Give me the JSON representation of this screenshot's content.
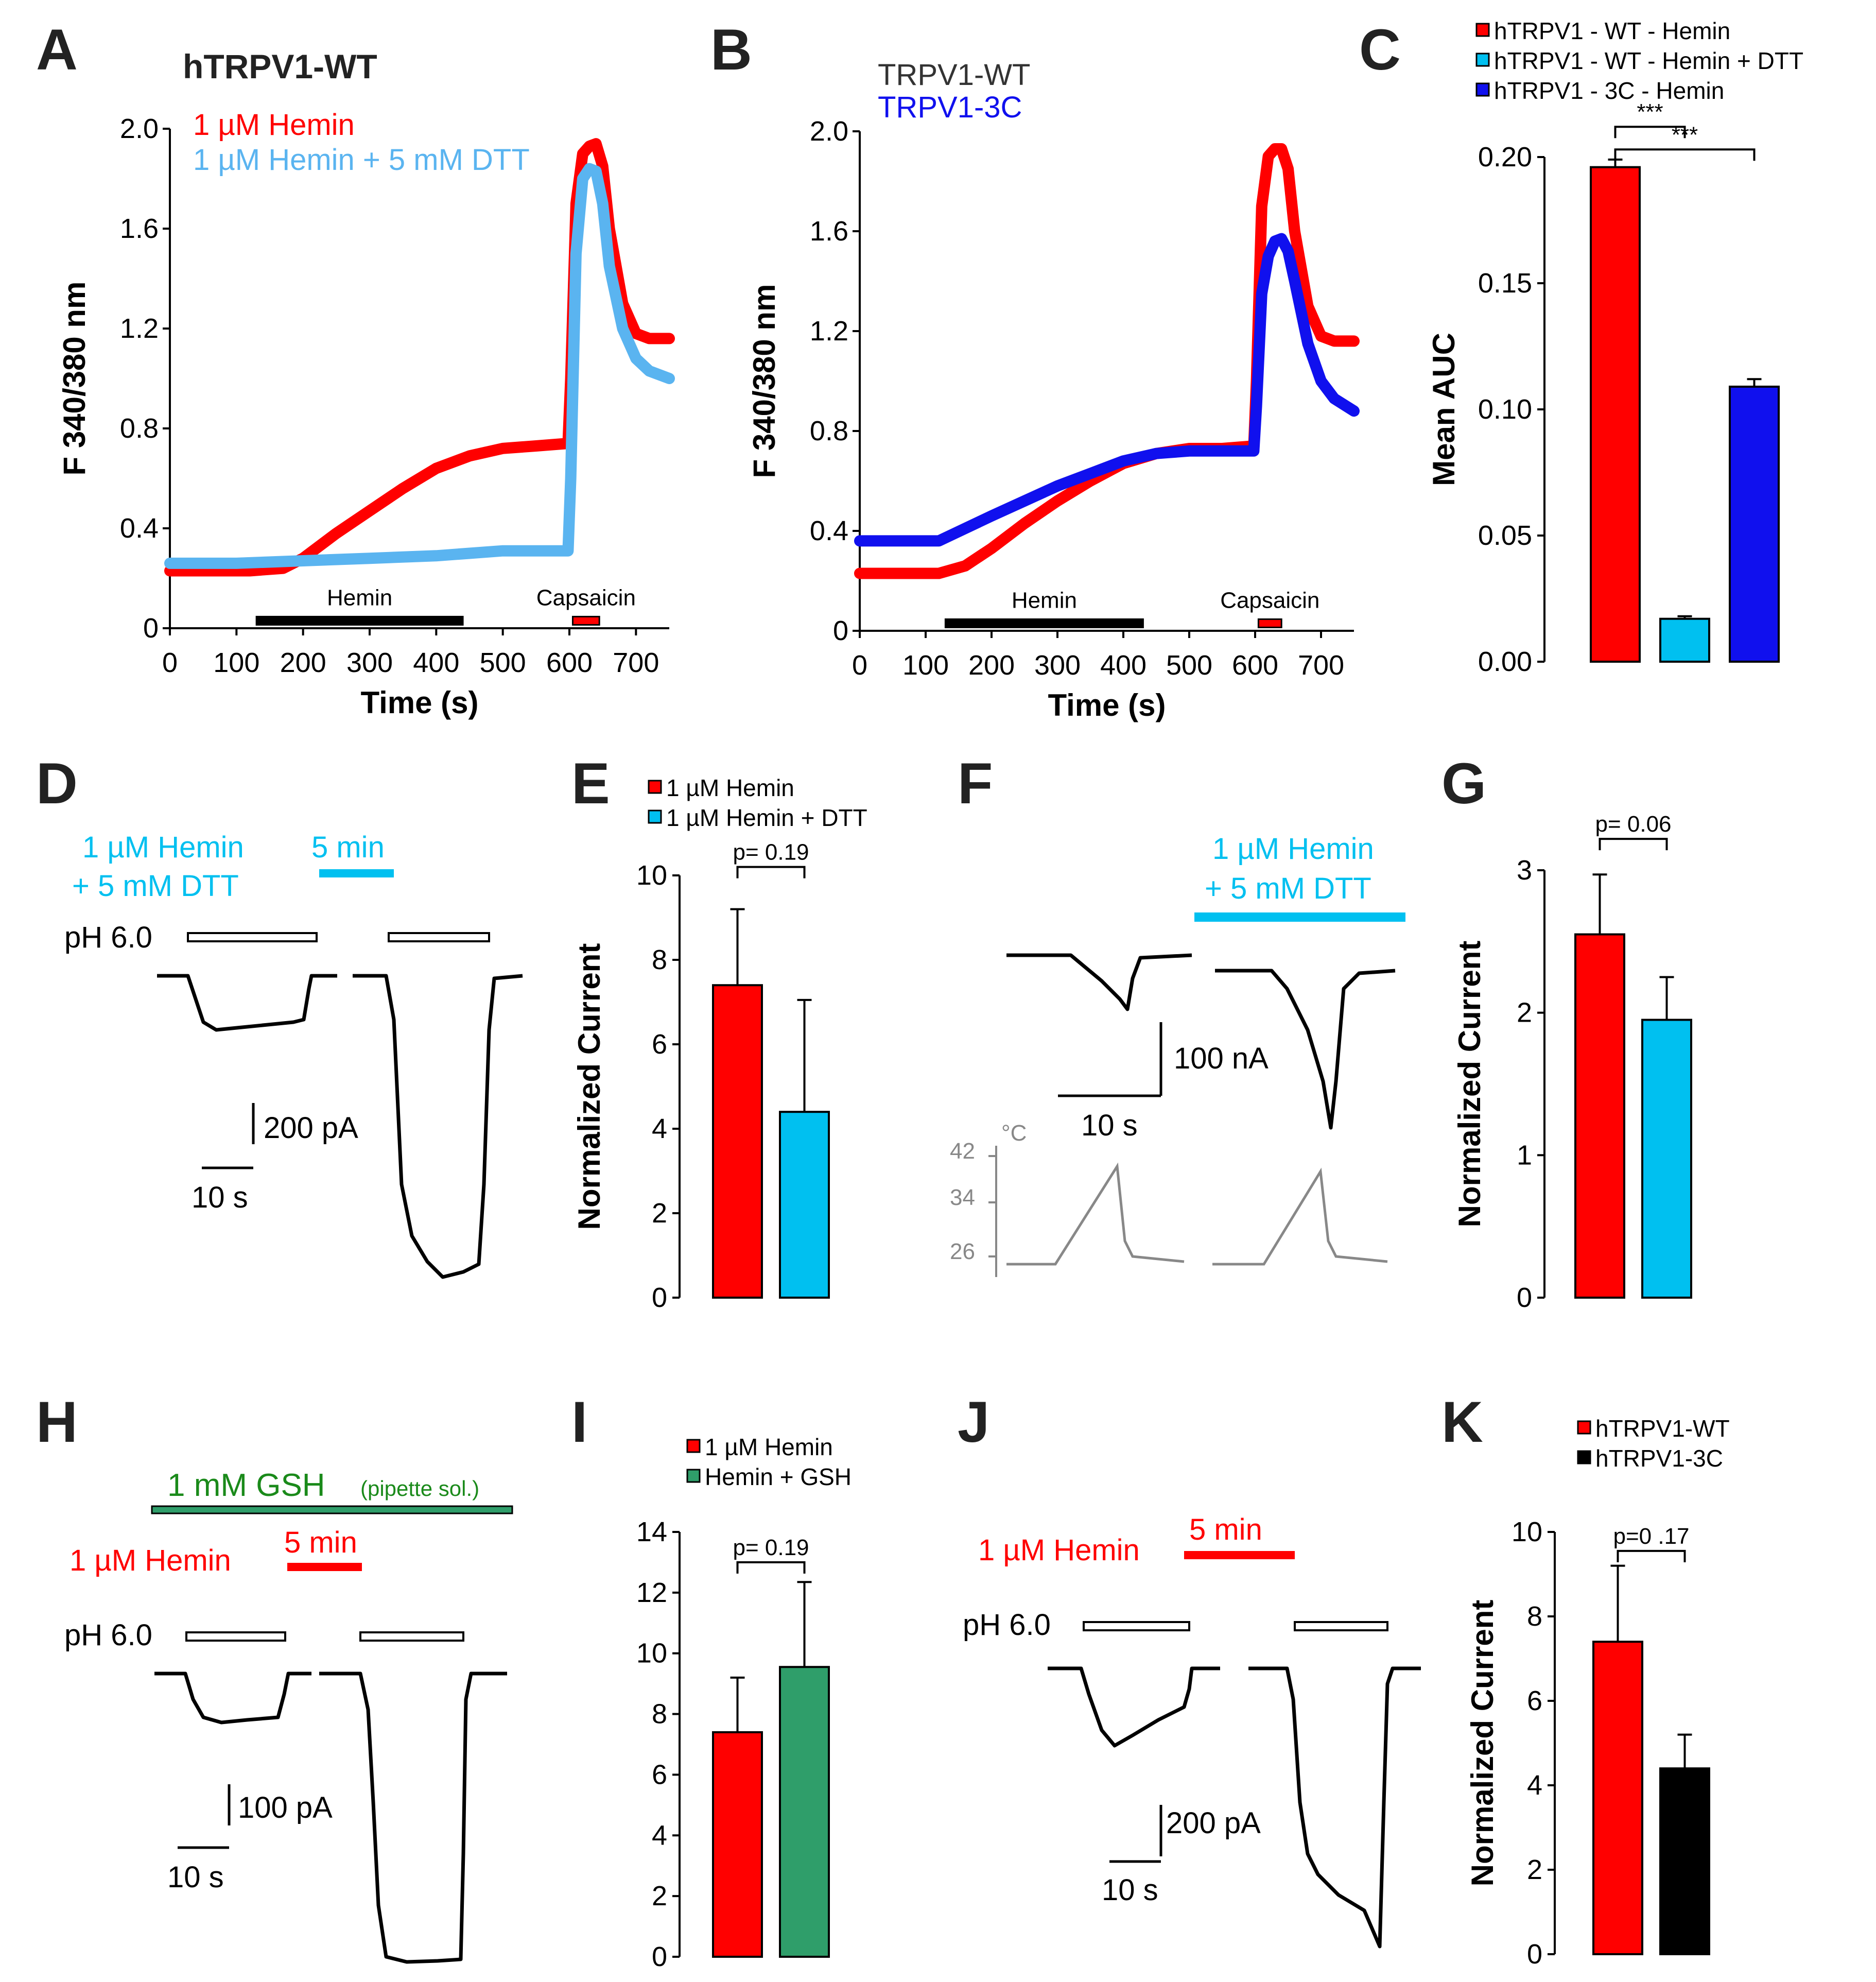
{
  "colors": {
    "red": "#ff0000",
    "lightblue": "#5ab4f0",
    "cyan": "#00c0f0",
    "blue": "#1010ee",
    "green": "#2f9e6a",
    "darkgreen": "#1a8a1a",
    "black": "#000000",
    "gray": "#888888"
  },
  "chart_data": [
    {
      "id": "A",
      "letter": "A",
      "type": "line",
      "title": "hTRPV1-WT",
      "xlabel": "Time (s)",
      "ylabel": "F 340/380 nm",
      "xlim": [
        0,
        750
      ],
      "ylim": [
        0,
        2.0
      ],
      "xticks": [
        0,
        100,
        200,
        300,
        400,
        500,
        600,
        700
      ],
      "yticks": [
        0,
        0.4,
        0.8,
        1.2,
        1.6,
        2.0
      ],
      "ytick_labels": [
        "0",
        "0.4",
        "0.8",
        "1.2",
        "1.6",
        "2.0"
      ],
      "series": [
        {
          "name": "1 µM Hemin",
          "color": "#ff0000",
          "x": [
            0,
            60,
            120,
            170,
            200,
            250,
            300,
            350,
            400,
            450,
            500,
            550,
            598,
            602,
            610,
            620,
            630,
            640,
            650,
            660,
            680,
            700,
            720,
            750
          ],
          "y": [
            0.23,
            0.23,
            0.23,
            0.24,
            0.28,
            0.38,
            0.47,
            0.56,
            0.64,
            0.69,
            0.72,
            0.73,
            0.74,
            1.0,
            1.7,
            1.9,
            1.93,
            1.94,
            1.85,
            1.6,
            1.3,
            1.18,
            1.16,
            1.16
          ]
        },
        {
          "name": "1 µM Hemin + 5 mM DTT",
          "color": "#5ab4f0",
          "x": [
            0,
            100,
            200,
            300,
            400,
            450,
            500,
            550,
            598,
            602,
            610,
            620,
            630,
            640,
            650,
            660,
            680,
            700,
            720,
            750
          ],
          "y": [
            0.26,
            0.26,
            0.27,
            0.28,
            0.29,
            0.3,
            0.31,
            0.31,
            0.31,
            0.6,
            1.5,
            1.8,
            1.84,
            1.83,
            1.7,
            1.45,
            1.2,
            1.08,
            1.03,
            1.0
          ]
        }
      ],
      "bars": [
        {
          "label": "Hemin",
          "x0": 130,
          "x1": 440,
          "color": "#000000"
        },
        {
          "label": "Capsaicin",
          "x0": 605,
          "x1": 645,
          "color": "#ff0000"
        }
      ]
    },
    {
      "id": "B",
      "letter": "B",
      "type": "line",
      "title": "",
      "xlabel": "Time (s)",
      "ylabel": "F 340/380 nm",
      "xlim": [
        0,
        750
      ],
      "ylim": [
        0,
        2.0
      ],
      "xticks": [
        0,
        100,
        200,
        300,
        400,
        500,
        600,
        700
      ],
      "yticks": [
        0,
        0.4,
        0.8,
        1.2,
        1.6,
        2.0
      ],
      "ytick_labels": [
        "0",
        "0.4",
        "0.8",
        "1.2",
        "1.6",
        "2.0"
      ],
      "series": [
        {
          "name": "TRPV1-WT",
          "color": "#ff0000",
          "x": [
            0,
            60,
            120,
            160,
            200,
            250,
            300,
            350,
            400,
            450,
            500,
            550,
            598,
            602,
            610,
            620,
            630,
            640,
            650,
            660,
            680,
            700,
            720,
            750
          ],
          "y": [
            0.23,
            0.23,
            0.23,
            0.26,
            0.33,
            0.43,
            0.52,
            0.6,
            0.67,
            0.71,
            0.73,
            0.73,
            0.74,
            1.0,
            1.7,
            1.9,
            1.93,
            1.93,
            1.85,
            1.6,
            1.3,
            1.18,
            1.16,
            1.16
          ]
        },
        {
          "name": "TRPV1-3C",
          "color": "#1010ee",
          "x": [
            0,
            60,
            120,
            160,
            200,
            250,
            300,
            350,
            400,
            450,
            500,
            550,
            598,
            602,
            610,
            620,
            630,
            640,
            650,
            660,
            680,
            700,
            720,
            750
          ],
          "y": [
            0.36,
            0.36,
            0.36,
            0.41,
            0.46,
            0.52,
            0.58,
            0.63,
            0.68,
            0.71,
            0.72,
            0.72,
            0.72,
            0.9,
            1.35,
            1.5,
            1.56,
            1.57,
            1.52,
            1.4,
            1.15,
            1.0,
            0.93,
            0.88
          ]
        }
      ],
      "bars": [
        {
          "label": "Hemin",
          "x0": 130,
          "x1": 430,
          "color": "#000000"
        },
        {
          "label": "Capsaicin",
          "x0": 605,
          "x1": 640,
          "color": "#ff0000"
        }
      ]
    },
    {
      "id": "C",
      "letter": "C",
      "type": "bar",
      "ylabel": "Mean AUC",
      "ylim": [
        0,
        0.2
      ],
      "yticks": [
        0,
        0.05,
        0.1,
        0.15,
        0.2
      ],
      "ytick_labels": [
        "0.00",
        "0.05",
        "0.10",
        "0.15",
        "0.20"
      ],
      "categories": [
        "hTRPV1 - WT - Hemin",
        "hTRPV1 - WT - Hemin + DTT",
        "hTRPV1 - 3C - Hemin"
      ],
      "values": [
        0.196,
        0.017,
        0.109
      ],
      "errors": [
        0.003,
        0.001,
        0.003
      ],
      "colors": [
        "#ff0000",
        "#00c0f0",
        "#1010ee"
      ],
      "legend_position": "top-right",
      "annotations": [
        {
          "text": "***",
          "from": 0,
          "to": 1,
          "level": 0.212
        },
        {
          "text": "***",
          "from": 0,
          "to": 2,
          "level": 0.203
        }
      ]
    },
    {
      "id": "E",
      "letter": "E",
      "type": "bar",
      "ylabel": "Normalized Current",
      "ylim": [
        0,
        10
      ],
      "yticks": [
        0,
        2,
        4,
        6,
        8,
        10
      ],
      "ytick_labels": [
        "0",
        "2",
        "4",
        "6",
        "8",
        "10"
      ],
      "categories": [
        "1 µM Hemin",
        "1 µM Hemin + DTT"
      ],
      "values": [
        7.4,
        4.4
      ],
      "errors": [
        1.8,
        2.65
      ],
      "colors": [
        "#ff0000",
        "#00c0f0"
      ],
      "legend_position": "top",
      "annotations": [
        {
          "text": "p= 0.19",
          "from": 0,
          "to": 1,
          "level": 10.2
        }
      ]
    },
    {
      "id": "G",
      "letter": "G",
      "type": "bar",
      "ylabel": "Normalized Current",
      "ylim": [
        0,
        3
      ],
      "yticks": [
        0,
        1,
        2,
        3
      ],
      "ytick_labels": [
        "0",
        "1",
        "2",
        "3"
      ],
      "categories": [
        "1 µM Hemin",
        "1 µM Hemin + DTT"
      ],
      "values": [
        2.55,
        1.95
      ],
      "errors": [
        0.42,
        0.3
      ],
      "colors": [
        "#ff0000",
        "#00c0f0"
      ],
      "legend_position": "none",
      "annotations": [
        {
          "text": "p= 0.06",
          "from": 0,
          "to": 1,
          "level": 3.22
        }
      ]
    },
    {
      "id": "I",
      "letter": "I",
      "type": "bar",
      "ylabel": "",
      "ylim": [
        0,
        14
      ],
      "yticks": [
        0,
        2,
        4,
        6,
        8,
        10,
        12,
        14
      ],
      "ytick_labels": [
        "0",
        "2",
        "4",
        "6",
        "8",
        "10",
        "12",
        "14"
      ],
      "categories": [
        "1 µM Hemin",
        "Hemin + GSH"
      ],
      "values": [
        7.4,
        9.55
      ],
      "errors": [
        1.8,
        2.8
      ],
      "colors": [
        "#ff0000",
        "#2f9e6a"
      ],
      "legend_position": "top",
      "annotations": [
        {
          "text": "p= 0.19",
          "from": 0,
          "to": 1,
          "level": 13.0
        }
      ]
    },
    {
      "id": "K",
      "letter": "K",
      "type": "bar",
      "ylabel": "Normalized Current",
      "ylim": [
        0,
        10
      ],
      "yticks": [
        0,
        2,
        4,
        6,
        8,
        10
      ],
      "ytick_labels": [
        "0",
        "2",
        "4",
        "6",
        "8",
        "10"
      ],
      "categories": [
        "hTRPV1-WT",
        "hTRPV1-3C"
      ],
      "values": [
        7.4,
        4.4
      ],
      "errors": [
        1.8,
        0.8
      ],
      "colors": [
        "#ff0000",
        "#000000"
      ],
      "legend_position": "top",
      "annotations": [
        {
          "text": "p=0 .17",
          "from": 0,
          "to": 1,
          "level": 9.55
        }
      ]
    }
  ],
  "legends": {
    "A": [
      "1 µM Hemin",
      "1 µM Hemin + 5 mM DTT"
    ],
    "B": [
      "TRPV1-WT",
      "TRPV1-3C"
    ]
  },
  "traces": {
    "D": {
      "letter": "D",
      "condition_line1": "1 µM Hemin",
      "condition_line2": "+ 5 mM DTT",
      "time_label": "5 min",
      "ph_label": "pH 6.0",
      "scale_y": "200 pA",
      "scale_x": "10 s"
    },
    "F": {
      "letter": "F",
      "condition_line1": "1 µM Hemin",
      "condition_line2": "+ 5 mM DTT",
      "scale_y": "100 nA",
      "scale_x": "10 s",
      "temp_unit": "°C",
      "temp_ticks": [
        "42",
        "34",
        "26"
      ]
    },
    "H": {
      "letter": "H",
      "gsh_main": "1 mM GSH",
      "gsh_note": "(pipette sol.)",
      "condition": "1 µM Hemin",
      "time_label": "5 min",
      "ph_label": "pH 6.0",
      "scale_y": "100 pA",
      "scale_x": "10 s"
    },
    "J": {
      "letter": "J",
      "condition": "1 µM Hemin",
      "time_label": "5 min",
      "ph_label": "pH 6.0",
      "scale_y": "200 pA",
      "scale_x": "10 s"
    }
  }
}
